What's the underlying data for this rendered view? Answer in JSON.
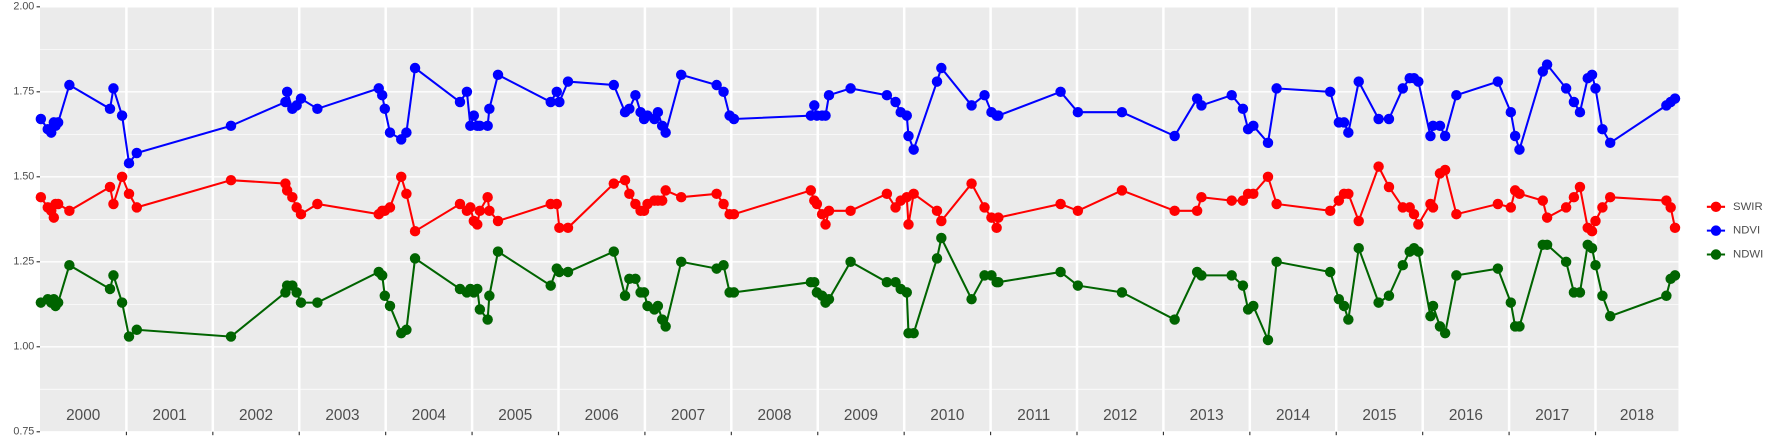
{
  "chart_data": {
    "type": "line",
    "year_labels": [
      "2000",
      "2001",
      "2002",
      "2003",
      "2004",
      "2005",
      "2006",
      "2007",
      "2008",
      "2009",
      "2010",
      "2011",
      "2012",
      "2013",
      "2014",
      "2015",
      "2016",
      "2017",
      "2018"
    ],
    "xlim": [
      2000,
      2018.96
    ],
    "xticks": [
      2001,
      2002,
      2003,
      2004,
      2005,
      2006,
      2007,
      2008,
      2009,
      2010,
      2011,
      2012,
      2013,
      2014,
      2015,
      2016,
      2017,
      2018
    ],
    "ylim": [
      0.75,
      2.0
    ],
    "yticks": [
      0.75,
      {
        "value": 1,
        "label": "1.00"
      },
      1.25,
      {
        "value": 1.5,
        "label": "1.50"
      },
      1.75,
      {
        "value": 2,
        "label": "2.00"
      }
    ],
    "minor_yticks": [
      0.875,
      1.125,
      1.375,
      1.625,
      1.875
    ],
    "grid": true,
    "legend": "right",
    "x": [
      2000.01,
      2000.09,
      2000.13,
      2000.16,
      2000.18,
      2000.21,
      2000.34,
      2000.81,
      2000.85,
      2000.95,
      2001.03,
      2001.12,
      2002.21,
      2002.84,
      2002.86,
      2002.92,
      2002.97,
      2003.02,
      2003.21,
      2003.92,
      2003.96,
      2003.99,
      2004.05,
      2004.18,
      2004.24,
      2004.34,
      2004.86,
      2004.94,
      2004.98,
      2005.02,
      2005.06,
      2005.09,
      2005.18,
      2005.2,
      2005.3,
      2005.91,
      2005.98,
      2006.01,
      2006.11,
      2006.64,
      2006.77,
      2006.82,
      2006.89,
      2006.95,
      2006.99,
      2007.03,
      2007.11,
      2007.15,
      2007.2,
      2007.24,
      2007.42,
      2007.83,
      2007.91,
      2007.98,
      2008.03,
      2008.92,
      2008.96,
      2008.99,
      2009.05,
      2009.09,
      2009.13,
      2009.38,
      2009.8,
      2009.9,
      2009.96,
      2010.03,
      2010.05,
      2010.11,
      2010.38,
      2010.43,
      2010.78,
      2010.93,
      2011.01,
      2011.07,
      2011.09,
      2011.81,
      2012.01,
      2012.52,
      2013.13,
      2013.39,
      2013.44,
      2013.79,
      2013.92,
      2013.98,
      2014.04,
      2014.21,
      2014.31,
      2014.93,
      2015.03,
      2015.09,
      2015.14,
      2015.26,
      2015.49,
      2015.61,
      2015.77,
      2015.85,
      2015.9,
      2015.95,
      2016.09,
      2016.12,
      2016.2,
      2016.26,
      2016.39,
      2016.87,
      2017.02,
      2017.07,
      2017.12,
      2017.39,
      2017.44,
      2017.66,
      2017.75,
      2017.82,
      2017.91,
      2017.96,
      2018.0,
      2018.08,
      2018.17,
      2018.82,
      2018.87,
      2018.92
    ],
    "series": [
      {
        "name": "SWIR",
        "color": "#ff0000",
        "values": [
          1.44,
          1.41,
          1.4,
          1.38,
          1.42,
          1.42,
          1.4,
          1.47,
          1.42,
          1.5,
          1.45,
          1.41,
          1.49,
          1.48,
          1.46,
          1.44,
          1.41,
          1.39,
          1.42,
          1.39,
          1.4,
          1.4,
          1.41,
          1.5,
          1.45,
          1.34,
          1.42,
          1.4,
          1.41,
          1.37,
          1.36,
          1.4,
          1.44,
          1.4,
          1.37,
          1.42,
          1.42,
          1.35,
          1.35,
          1.48,
          1.49,
          1.45,
          1.42,
          1.4,
          1.4,
          1.42,
          1.43,
          1.43,
          1.43,
          1.46,
          1.44,
          1.45,
          1.42,
          1.39,
          1.39,
          1.46,
          1.43,
          1.42,
          1.39,
          1.36,
          1.4,
          1.4,
          1.45,
          1.41,
          1.43,
          1.44,
          1.36,
          1.45,
          1.4,
          1.37,
          1.48,
          1.41,
          1.38,
          1.35,
          1.38,
          1.42,
          1.4,
          1.46,
          1.4,
          1.4,
          1.44,
          1.43,
          1.43,
          1.45,
          1.45,
          1.5,
          1.42,
          1.4,
          1.43,
          1.45,
          1.45,
          1.37,
          1.53,
          1.47,
          1.41,
          1.41,
          1.39,
          1.36,
          1.42,
          1.41,
          1.51,
          1.52,
          1.39,
          1.42,
          1.41,
          1.46,
          1.45,
          1.43,
          1.38,
          1.41,
          1.44,
          1.47,
          1.35,
          1.34,
          1.37,
          1.41,
          1.44,
          1.43,
          1.41,
          1.35
        ]
      },
      {
        "name": "NDVI",
        "color": "#0000ff",
        "values": [
          1.67,
          1.64,
          1.63,
          1.66,
          1.65,
          1.66,
          1.77,
          1.7,
          1.76,
          1.68,
          1.54,
          1.57,
          1.65,
          1.72,
          1.75,
          1.7,
          1.71,
          1.73,
          1.7,
          1.76,
          1.74,
          1.7,
          1.63,
          1.61,
          1.63,
          1.82,
          1.72,
          1.75,
          1.65,
          1.68,
          1.65,
          1.65,
          1.65,
          1.7,
          1.8,
          1.72,
          1.75,
          1.72,
          1.78,
          1.77,
          1.69,
          1.7,
          1.74,
          1.69,
          1.67,
          1.68,
          1.67,
          1.69,
          1.65,
          1.63,
          1.8,
          1.77,
          1.75,
          1.68,
          1.67,
          1.68,
          1.71,
          1.68,
          1.68,
          1.68,
          1.74,
          1.76,
          1.74,
          1.72,
          1.69,
          1.68,
          1.62,
          1.58,
          1.78,
          1.82,
          1.71,
          1.74,
          1.69,
          1.68,
          1.68,
          1.75,
          1.69,
          1.69,
          1.62,
          1.73,
          1.71,
          1.74,
          1.7,
          1.64,
          1.65,
          1.6,
          1.76,
          1.75,
          1.66,
          1.66,
          1.63,
          1.78,
          1.67,
          1.67,
          1.76,
          1.79,
          1.79,
          1.78,
          1.62,
          1.65,
          1.65,
          1.62,
          1.74,
          1.78,
          1.69,
          1.62,
          1.58,
          1.81,
          1.83,
          1.76,
          1.72,
          1.69,
          1.79,
          1.8,
          1.76,
          1.64,
          1.6,
          1.71,
          1.72,
          1.73
        ]
      },
      {
        "name": "NDWI",
        "color": "#006400",
        "values": [
          1.13,
          1.14,
          1.13,
          1.14,
          1.12,
          1.13,
          1.24,
          1.17,
          1.21,
          1.13,
          1.03,
          1.05,
          1.03,
          1.16,
          1.18,
          1.18,
          1.16,
          1.13,
          1.13,
          1.22,
          1.21,
          1.15,
          1.12,
          1.04,
          1.05,
          1.26,
          1.17,
          1.16,
          1.17,
          1.16,
          1.17,
          1.11,
          1.08,
          1.15,
          1.28,
          1.18,
          1.23,
          1.22,
          1.22,
          1.28,
          1.15,
          1.2,
          1.2,
          1.16,
          1.16,
          1.12,
          1.11,
          1.12,
          1.08,
          1.06,
          1.25,
          1.23,
          1.24,
          1.16,
          1.16,
          1.19,
          1.19,
          1.16,
          1.15,
          1.13,
          1.14,
          1.25,
          1.19,
          1.19,
          1.17,
          1.16,
          1.04,
          1.04,
          1.26,
          1.32,
          1.14,
          1.21,
          1.21,
          1.19,
          1.19,
          1.22,
          1.18,
          1.16,
          1.08,
          1.22,
          1.21,
          1.21,
          1.18,
          1.11,
          1.12,
          1.02,
          1.25,
          1.22,
          1.14,
          1.12,
          1.08,
          1.29,
          1.13,
          1.15,
          1.24,
          1.28,
          1.29,
          1.28,
          1.09,
          1.12,
          1.06,
          1.04,
          1.21,
          1.23,
          1.13,
          1.06,
          1.06,
          1.3,
          1.3,
          1.25,
          1.16,
          1.16,
          1.3,
          1.29,
          1.24,
          1.15,
          1.09,
          1.15,
          1.2,
          1.21
        ]
      }
    ]
  }
}
